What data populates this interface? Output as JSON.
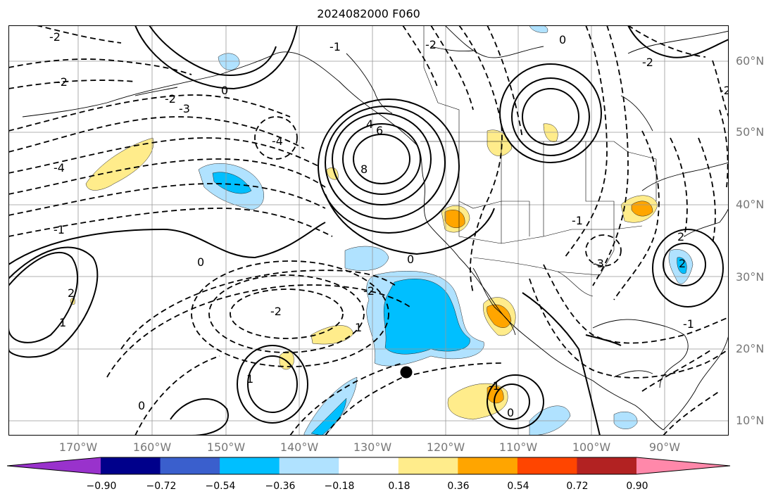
{
  "title": "2024082000 F060",
  "lat_labels": [
    "60°N",
    "50°N",
    "40°N",
    "30°N",
    "20°N",
    "10°N"
  ],
  "lon_labels": [
    "170°W",
    "160°W",
    "150°W",
    "140°W",
    "130°W",
    "120°W",
    "110°W",
    "100°W",
    "90°W"
  ],
  "colorbar": {
    "labels": [
      "−0.90",
      "−0.72",
      "−0.54",
      "−0.36",
      "−0.18",
      "0.18",
      "0.36",
      "0.54",
      "0.72",
      "0.90"
    ],
    "colors": [
      "#9932cc",
      "#00008b",
      "#3a5fcd",
      "#00bfff",
      "#b0e2ff",
      "#ffffff",
      "#ffec8b",
      "#ffa500",
      "#ff4500",
      "#b22222",
      "#ff88aa"
    ]
  },
  "contour_labels": [
    "-2",
    "-2",
    "-2",
    "-3",
    "-4",
    "-4",
    "-1",
    "-2",
    "-2",
    "-2",
    "-3",
    "-2",
    "-1",
    "-1",
    "0",
    "0",
    "0",
    "0",
    "0",
    "0",
    "1",
    "1",
    "1",
    "2",
    "2",
    "2",
    "8",
    "6",
    "4",
    "-1",
    "-1",
    "-2"
  ],
  "marker": "storm-position-dot"
}
